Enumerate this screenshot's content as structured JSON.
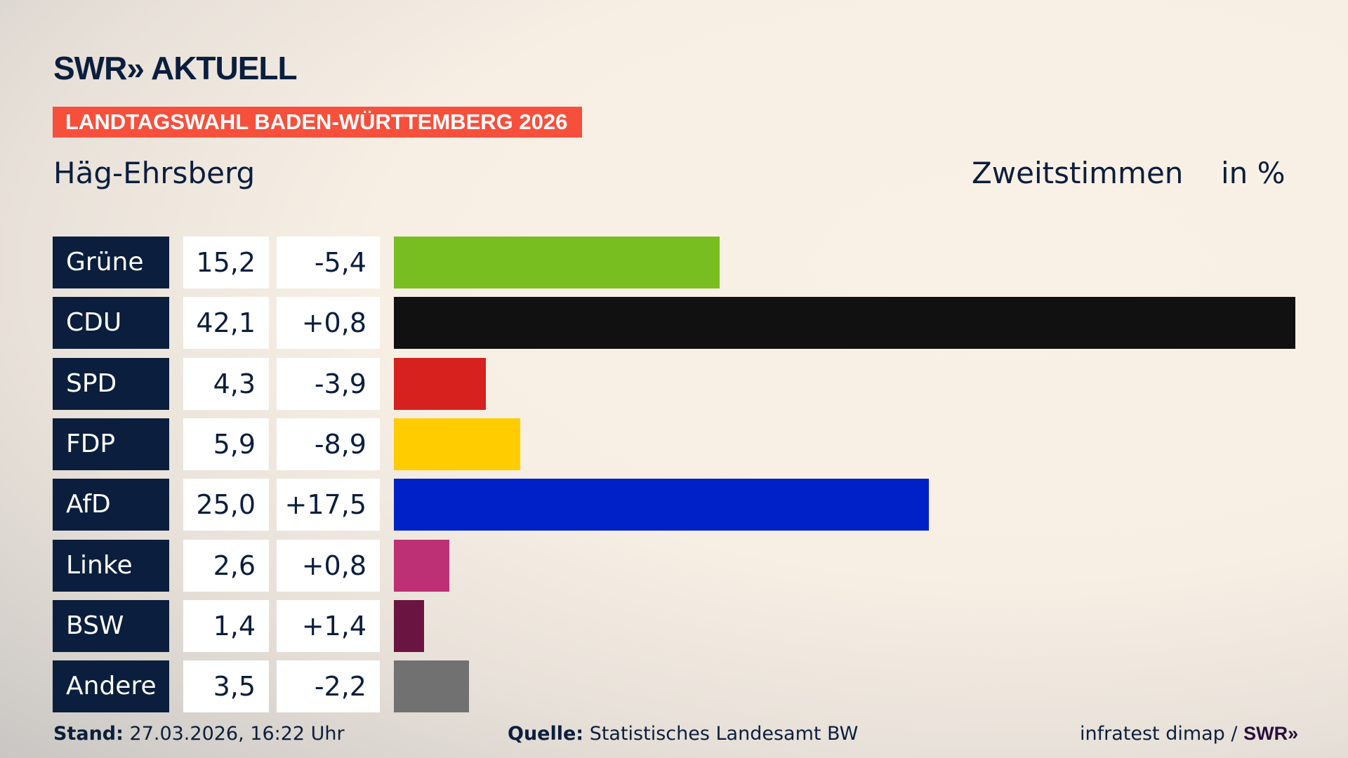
{
  "logo": "SWR» AKTUELL",
  "banner": "LANDTAGSWAHL BADEN-WÜRTTEMBERG 2026",
  "region": "Häg-Ehrsberg",
  "header": {
    "vote_type": "Zweitstimmen",
    "unit": "in %"
  },
  "chart_data": {
    "type": "bar",
    "orientation": "horizontal",
    "categories": [
      "Grüne",
      "CDU",
      "SPD",
      "FDP",
      "AfD",
      "Linke",
      "BSW",
      "Andere"
    ],
    "values": [
      15.2,
      42.1,
      4.3,
      5.9,
      25.0,
      2.6,
      1.4,
      3.5
    ],
    "value_labels": [
      "15,2",
      "42,1",
      "4,3",
      "5,9",
      "25,0",
      "2,6",
      "1,4",
      "3,5"
    ],
    "change_labels": [
      "-5,4",
      "+0,8",
      "-3,9",
      "-8,9",
      "+17,5",
      "+0,8",
      "+1,4",
      "-2,2"
    ],
    "colors": [
      "#78be20",
      "#111111",
      "#d7211e",
      "#ffcc00",
      "#0021c8",
      "#bd3075",
      "#6a1541",
      "#717171"
    ]
  },
  "footer": {
    "stand_label": "Stand:",
    "stand_value": "27.03.2026, 16:22 Uhr",
    "source_label": "Quelle:",
    "source_value": "Statistisches Landesamt BW",
    "credit": "infratest dimap /",
    "credit_logo": "SWR»"
  }
}
